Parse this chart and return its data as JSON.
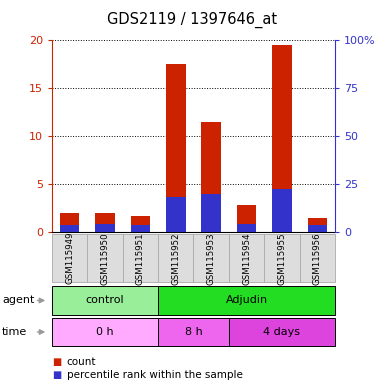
{
  "title": "GDS2119 / 1397646_at",
  "samples": [
    "GSM115949",
    "GSM115950",
    "GSM115951",
    "GSM115952",
    "GSM115953",
    "GSM115954",
    "GSM115955",
    "GSM115956"
  ],
  "count_values": [
    2.0,
    2.0,
    1.7,
    17.5,
    11.5,
    2.8,
    19.5,
    1.5
  ],
  "percentile_values": [
    0.8,
    0.9,
    0.8,
    3.7,
    4.0,
    0.9,
    4.5,
    0.8
  ],
  "left_ylim": [
    0,
    20
  ],
  "right_ylim": [
    0,
    100
  ],
  "left_yticks": [
    0,
    5,
    10,
    15,
    20
  ],
  "right_yticks": [
    0,
    25,
    50,
    75,
    100
  ],
  "right_yticklabels": [
    "0",
    "25",
    "50",
    "75",
    "100%"
  ],
  "bar_color_red": "#cc2200",
  "bar_color_blue": "#3333cc",
  "bar_width": 0.55,
  "grid_color": "black",
  "agent_groups": [
    {
      "label": "control",
      "start": 0,
      "end": 3,
      "color": "#99ee99"
    },
    {
      "label": "Adjudin",
      "start": 3,
      "end": 8,
      "color": "#22dd22"
    }
  ],
  "time_groups": [
    {
      "label": "0 h",
      "start": 0,
      "end": 3,
      "color": "#ffaaff"
    },
    {
      "label": "8 h",
      "start": 3,
      "end": 5,
      "color": "#ee66ee"
    },
    {
      "label": "4 days",
      "start": 5,
      "end": 8,
      "color": "#dd44dd"
    }
  ],
  "agent_label": "agent",
  "time_label": "time",
  "legend_items": [
    {
      "label": "count",
      "color": "#cc2200"
    },
    {
      "label": "percentile rank within the sample",
      "color": "#3333cc"
    }
  ],
  "bg_color": "#ffffff",
  "left_axis_color": "#cc2200",
  "right_axis_color": "#3333cc",
  "xtick_box_color": "#dddddd",
  "xtick_edge_color": "#aaaaaa"
}
